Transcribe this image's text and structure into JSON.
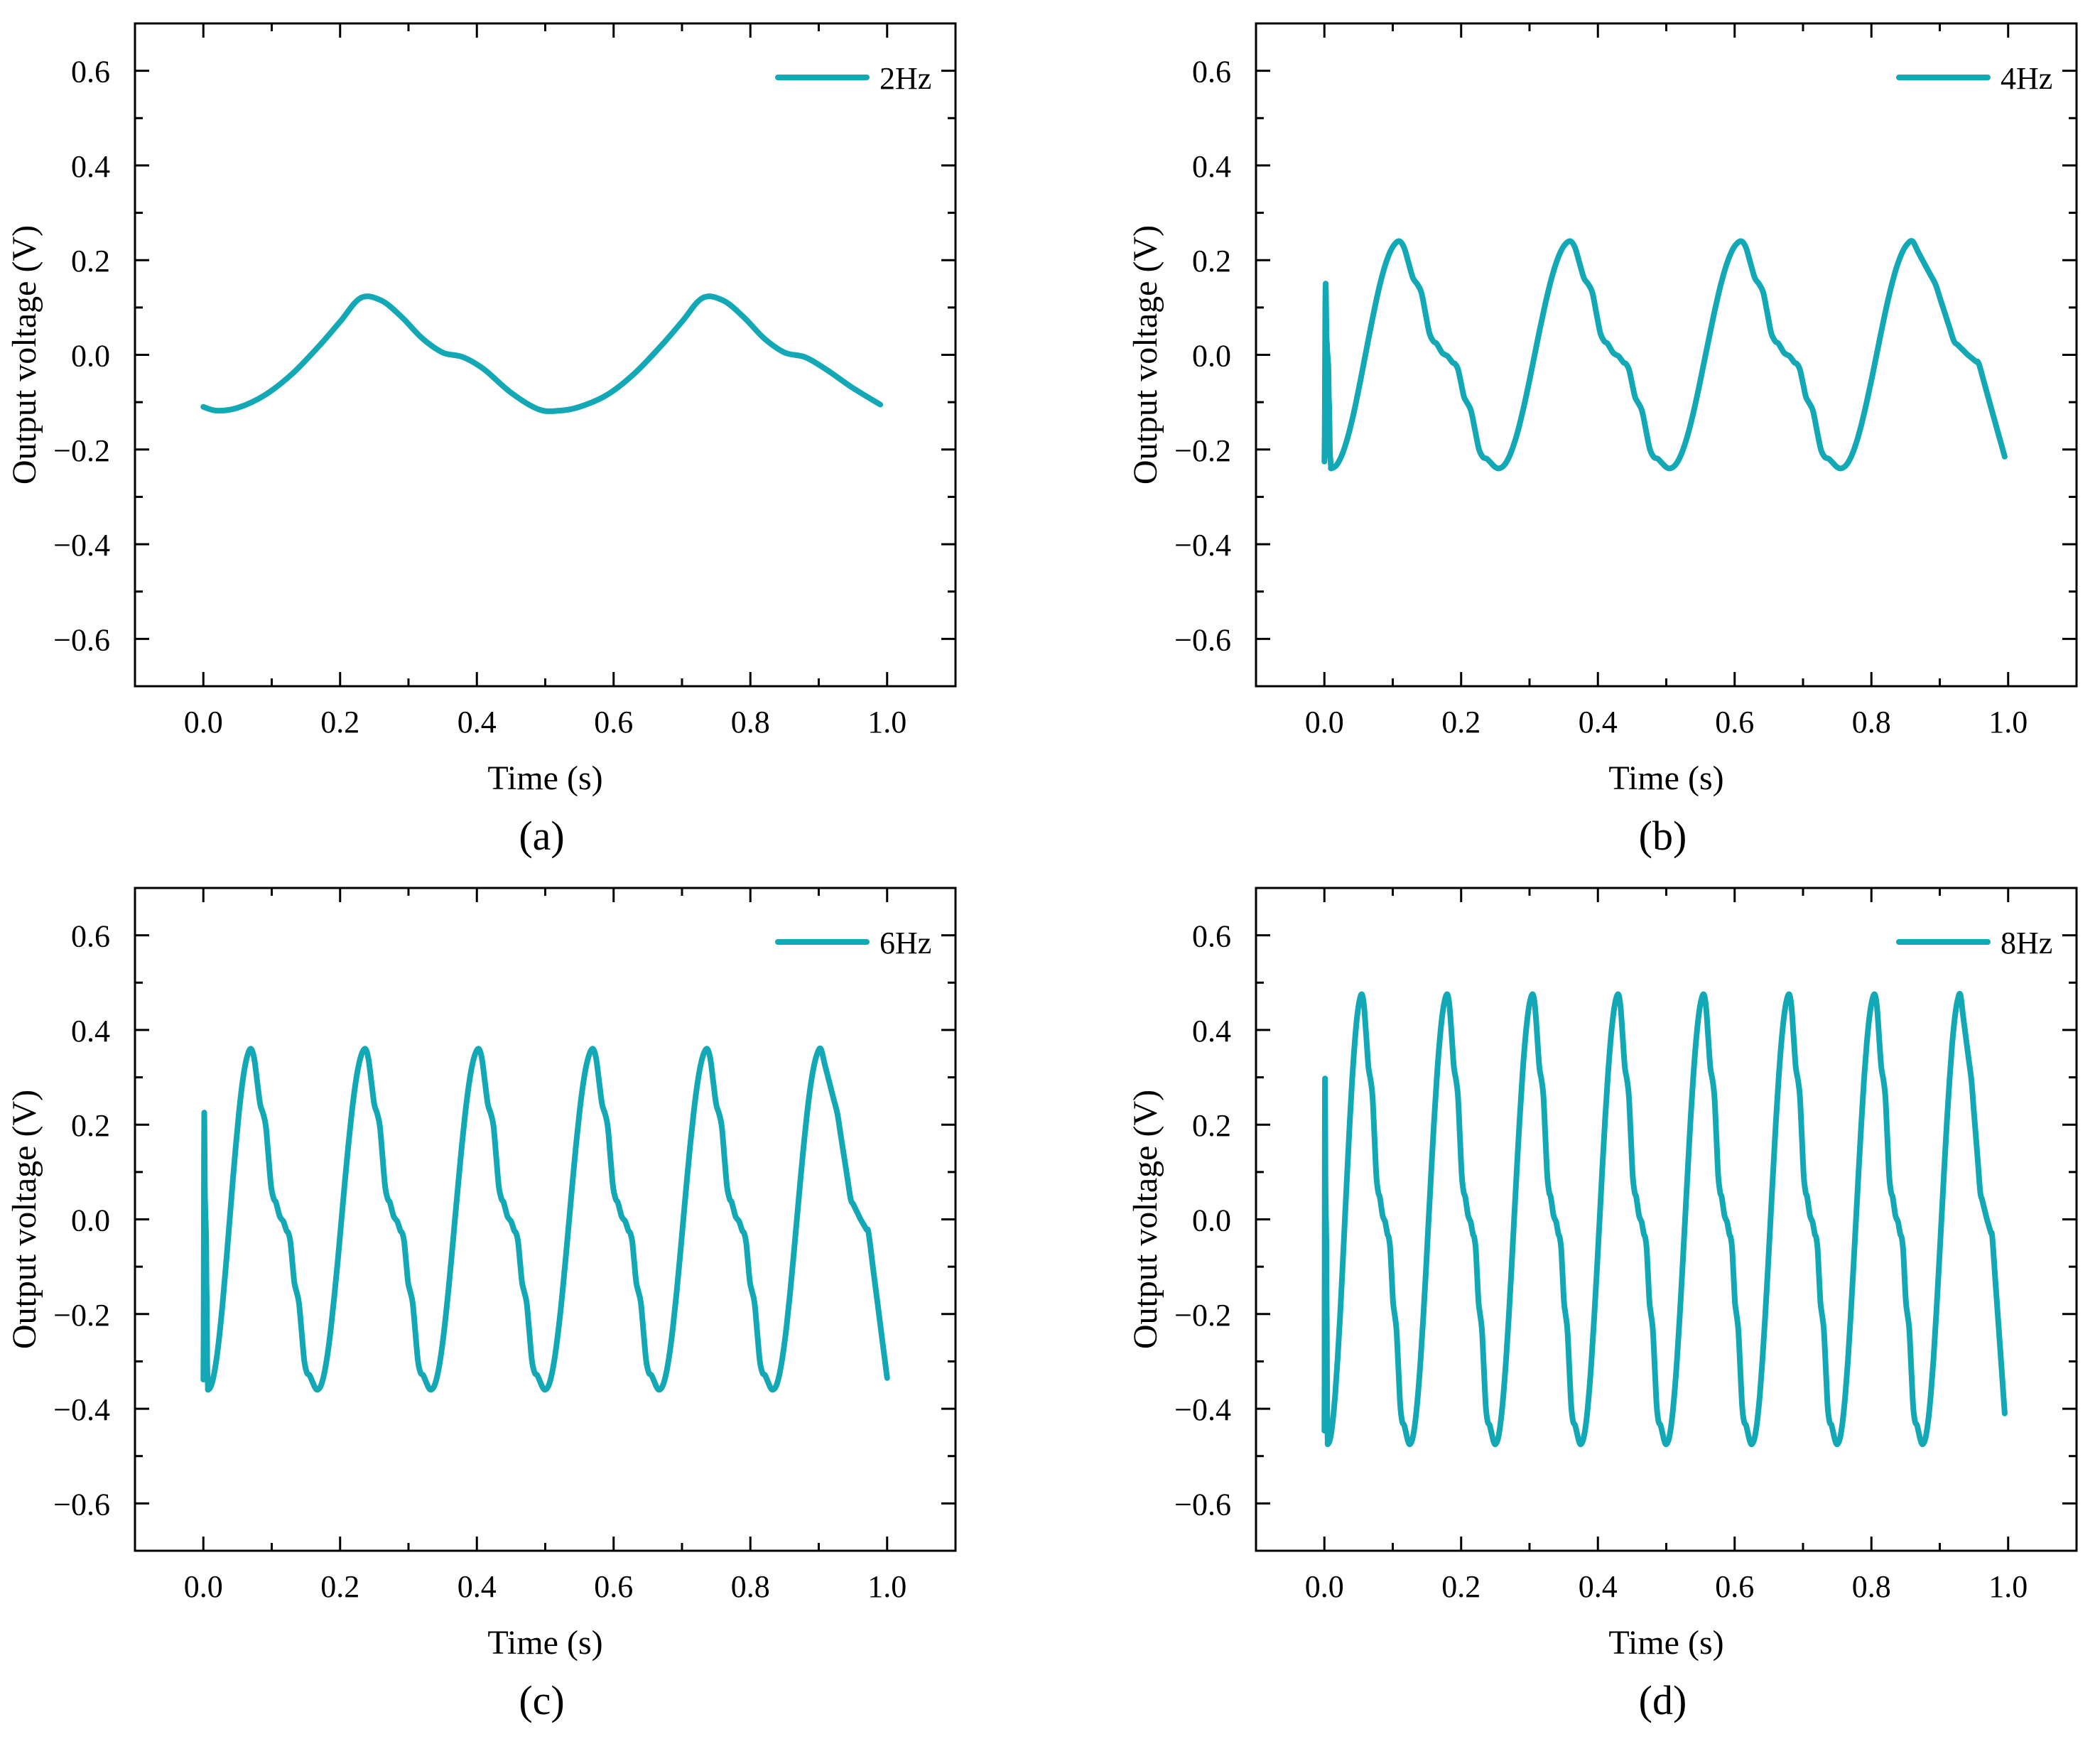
{
  "figure": {
    "style": {
      "line_color": "#13A8B5",
      "axis_color": "#000000",
      "background": "#ffffff"
    },
    "xlabel": "Time (s)",
    "ylabel": "Output voltage (V)"
  },
  "chart_data": [
    {
      "type": "line",
      "panel_label": "(a)",
      "title": "",
      "xlabel": "Time (s)",
      "ylabel": "Output voltage (V)",
      "xlim": [
        -0.1,
        1.1
      ],
      "ylim": [
        -0.7,
        0.7
      ],
      "xticks": [
        "0.0",
        "0.2",
        "0.4",
        "0.6",
        "0.8",
        "1.0"
      ],
      "yticks": [
        "−0.6",
        "−0.4",
        "−0.2",
        "0.0",
        "0.2",
        "0.4",
        "0.6"
      ],
      "grid": false,
      "legend_position": "top-right",
      "series": [
        {
          "name": "2Hz",
          "color": "#13A8B5",
          "frequency_hz": 2,
          "amplitude_v": 0.12,
          "t_start": 0.0,
          "t_end": 0.99,
          "points": [
            [
              0.0,
              -0.11
            ],
            [
              0.02,
              -0.118
            ],
            [
              0.05,
              -0.112
            ],
            [
              0.09,
              -0.085
            ],
            [
              0.13,
              -0.04
            ],
            [
              0.17,
              0.02
            ],
            [
              0.2,
              0.07
            ],
            [
              0.23,
              0.12
            ],
            [
              0.26,
              0.115
            ],
            [
              0.29,
              0.08
            ],
            [
              0.32,
              0.035
            ],
            [
              0.35,
              0.005
            ],
            [
              0.38,
              -0.005
            ],
            [
              0.41,
              -0.03
            ],
            [
              0.45,
              -0.08
            ],
            [
              0.49,
              -0.115
            ],
            [
              0.52,
              -0.118
            ],
            [
              0.55,
              -0.11
            ],
            [
              0.59,
              -0.085
            ],
            [
              0.63,
              -0.04
            ],
            [
              0.67,
              0.02
            ],
            [
              0.7,
              0.07
            ],
            [
              0.73,
              0.12
            ],
            [
              0.76,
              0.115
            ],
            [
              0.79,
              0.08
            ],
            [
              0.82,
              0.035
            ],
            [
              0.85,
              0.005
            ],
            [
              0.88,
              -0.005
            ],
            [
              0.91,
              -0.03
            ],
            [
              0.95,
              -0.07
            ],
            [
              0.99,
              -0.105
            ]
          ]
        }
      ]
    },
    {
      "type": "line",
      "panel_label": "(b)",
      "title": "",
      "xlabel": "Time (s)",
      "ylabel": "Output voltage (V)",
      "xlim": [
        -0.1,
        1.1
      ],
      "ylim": [
        -0.7,
        0.7
      ],
      "xticks": [
        "0.0",
        "0.2",
        "0.4",
        "0.6",
        "0.8",
        "1.0"
      ],
      "yticks": [
        "−0.6",
        "−0.4",
        "−0.2",
        "0.0",
        "0.2",
        "0.4",
        "0.6"
      ],
      "grid": false,
      "legend_position": "top-right",
      "series": [
        {
          "name": "4Hz",
          "color": "#13A8B5",
          "frequency_hz": 4,
          "amplitude_v": 0.24,
          "t_start": 0.0,
          "t_end": 0.995,
          "peak_times": [
            0.11,
            0.36,
            0.61,
            0.86
          ],
          "trough_times": [
            0.01,
            0.255,
            0.505,
            0.755
          ],
          "end_value": -0.215
        }
      ]
    },
    {
      "type": "line",
      "panel_label": "(c)",
      "title": "",
      "xlabel": "Time (s)",
      "ylabel": "Output voltage (V)",
      "xlim": [
        -0.1,
        1.1
      ],
      "ylim": [
        -0.7,
        0.7
      ],
      "xticks": [
        "0.0",
        "0.2",
        "0.4",
        "0.6",
        "0.8",
        "1.0"
      ],
      "yticks": [
        "−0.6",
        "−0.4",
        "−0.2",
        "0.0",
        "0.2",
        "0.4",
        "0.6"
      ],
      "grid": false,
      "legend_position": "top-right",
      "series": [
        {
          "name": "6Hz",
          "color": "#13A8B5",
          "frequency_hz": 6,
          "amplitude_v": 0.36,
          "t_start": 0.0,
          "t_end": 1.0,
          "peak_times": [
            0.07,
            0.237,
            0.403,
            0.57,
            0.737,
            0.903
          ],
          "trough_times": [
            0.007,
            0.167,
            0.333,
            0.5,
            0.667,
            0.833
          ],
          "end_value": -0.335
        }
      ]
    },
    {
      "type": "line",
      "panel_label": "(d)",
      "title": "",
      "xlabel": "Time (s)",
      "ylabel": "Output voltage (V)",
      "xlim": [
        -0.1,
        1.1
      ],
      "ylim": [
        -0.7,
        0.7
      ],
      "xticks": [
        "0.0",
        "0.2",
        "0.4",
        "0.6",
        "0.8",
        "1.0"
      ],
      "yticks": [
        "−0.6",
        "−0.4",
        "−0.2",
        "0.0",
        "0.2",
        "0.4",
        "0.6"
      ],
      "grid": false,
      "legend_position": "top-right",
      "series": [
        {
          "name": "8Hz",
          "color": "#13A8B5",
          "frequency_hz": 8,
          "amplitude_v": 0.475,
          "t_start": 0.0,
          "t_end": 0.995,
          "peak_times": [
            0.055,
            0.18,
            0.305,
            0.43,
            0.555,
            0.68,
            0.805,
            0.93
          ],
          "trough_times": [
            0.005,
            0.125,
            0.25,
            0.375,
            0.5,
            0.625,
            0.75,
            0.875
          ],
          "end_value": -0.41
        }
      ]
    }
  ]
}
